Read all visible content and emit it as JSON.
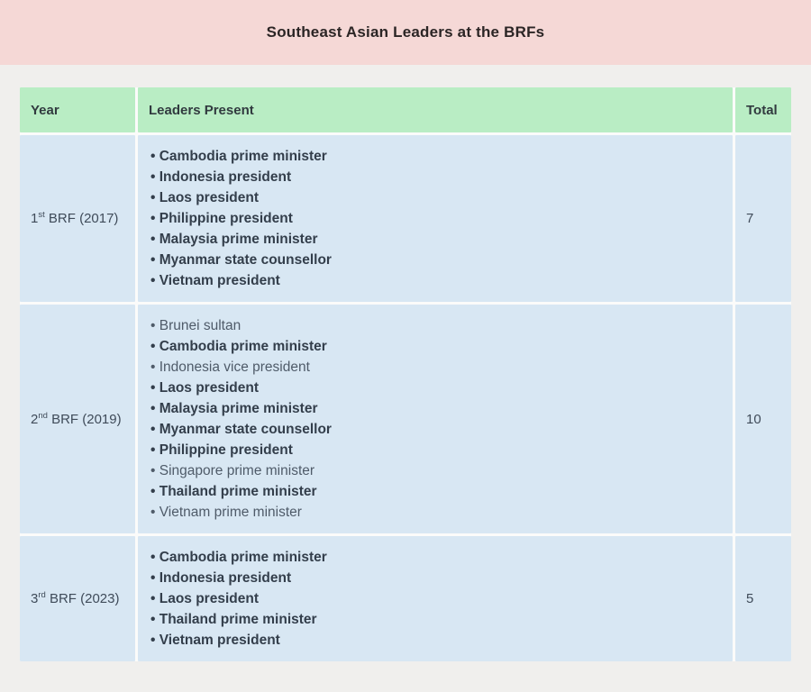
{
  "title": "Southeast Asian Leaders at the BRFs",
  "bullet": "•",
  "colors": {
    "banner_pink": "#f5d8d6",
    "header_green": "#b9edc4",
    "cell_blue": "#d8e7f3",
    "page_background": "#f0efed",
    "bold_text": "#333e4b",
    "regular_text": "#4f5b69"
  },
  "chart_data": {
    "type": "table",
    "title": "Southeast Asian Leaders at the BRFs",
    "columns": [
      "Year",
      "Leaders Present",
      "Total"
    ],
    "rows": [
      {
        "year": {
          "number": "1",
          "ordinal": "st",
          "rest": " BRF (2017)"
        },
        "leaders": [
          {
            "text": "Cambodia prime minister",
            "bold": true
          },
          {
            "text": "Indonesia president",
            "bold": true
          },
          {
            "text": "Laos president",
            "bold": true
          },
          {
            "text": "Philippine president",
            "bold": true
          },
          {
            "text": "Malaysia prime minister",
            "bold": true
          },
          {
            "text": "Myanmar state counsellor",
            "bold": true
          },
          {
            "text": "Vietnam president",
            "bold": true
          }
        ],
        "total": "7"
      },
      {
        "year": {
          "number": "2",
          "ordinal": "nd",
          "rest": " BRF (2019)"
        },
        "leaders": [
          {
            "text": "Brunei sultan",
            "bold": false
          },
          {
            "text": "Cambodia prime minister",
            "bold": true
          },
          {
            "text": "Indonesia vice president",
            "bold": false
          },
          {
            "text": "Laos president",
            "bold": true
          },
          {
            "text": "Malaysia prime minister",
            "bold": true
          },
          {
            "text": "Myanmar state counsellor",
            "bold": true
          },
          {
            "text": "Philippine president",
            "bold": true
          },
          {
            "text": "Singapore prime minister",
            "bold": false
          },
          {
            "text": "Thailand prime minister",
            "bold": true
          },
          {
            "text": "Vietnam prime minister",
            "bold": false
          }
        ],
        "total": "10"
      },
      {
        "year": {
          "number": "3",
          "ordinal": "rd",
          "rest": " BRF (2023)"
        },
        "leaders": [
          {
            "text": "Cambodia prime minister",
            "bold": true
          },
          {
            "text": "Indonesia president",
            "bold": true
          },
          {
            "text": "Laos president",
            "bold": true
          },
          {
            "text": "Thailand prime minister",
            "bold": true
          },
          {
            "text": "Vietnam president",
            "bold": true
          }
        ],
        "total": "5"
      }
    ]
  }
}
